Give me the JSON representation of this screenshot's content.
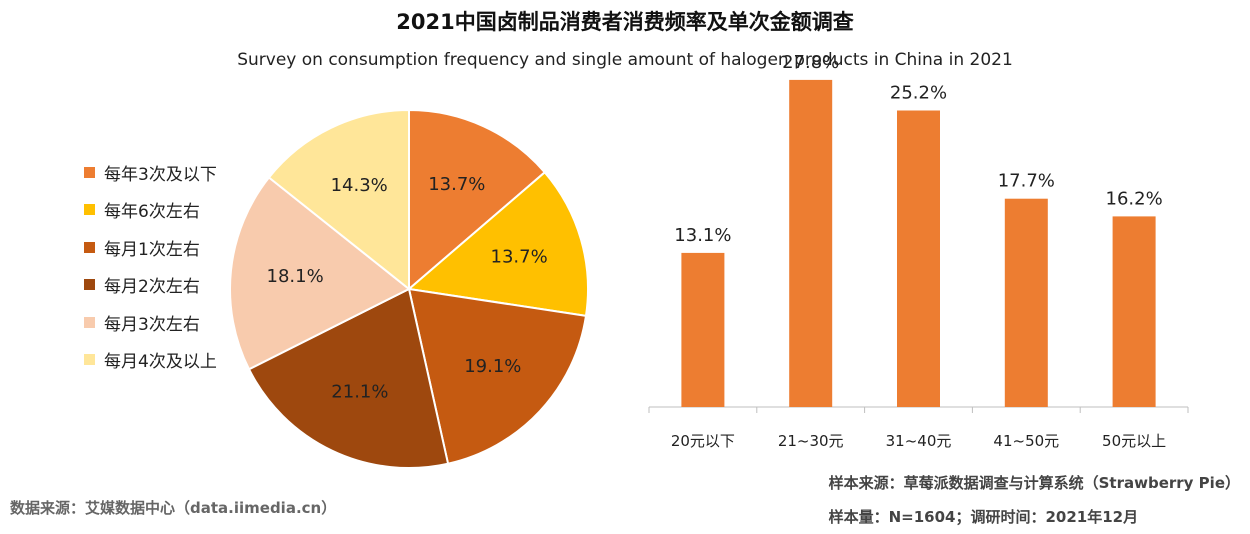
{
  "title": "2021中国卤制品消费者消费频率及单次金额调查",
  "subtitle": "Survey on consumption frequency and single amount of halogen products in China in 2021",
  "source": {
    "left": "数据来源：艾媒数据中心（data.iimedia.cn）",
    "sample_source": "样本来源：草莓派数据调查与计算系统（Strawberry  Pie）",
    "sample_info": "样本量：N=1604；调研时间：2021年12月"
  },
  "chart_data": [
    {
      "type": "pie",
      "categories": [
        "每年3次及以下",
        "每年6次左右",
        "每月1次左右",
        "每月2次左右",
        "每月3次左右",
        "每月4次及以上"
      ],
      "values": [
        13.7,
        13.7,
        19.1,
        21.1,
        18.1,
        14.3
      ],
      "labels": [
        "13.7%",
        "13.7%",
        "19.1%",
        "21.1%",
        "18.1%",
        "14.3%"
      ],
      "colors": [
        "#ED7D31",
        "#FFC000",
        "#C55A11",
        "#9E480E",
        "#F8CBAD",
        "#FFE699"
      ],
      "legend_position": "left"
    },
    {
      "type": "bar",
      "categories": [
        "20元以下",
        "21~30元",
        "31~40元",
        "41~50元",
        "50元以上"
      ],
      "values": [
        13.1,
        27.8,
        25.2,
        17.7,
        16.2
      ],
      "labels": [
        "13.1%",
        "27.8%",
        "25.2%",
        "17.7%",
        "16.2%"
      ],
      "color": "#ED7D31",
      "ylim": [
        0,
        30
      ],
      "grid": false
    }
  ]
}
